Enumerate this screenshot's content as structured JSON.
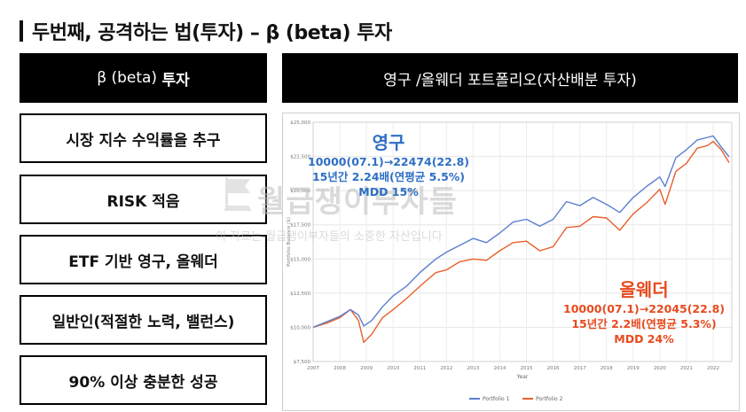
{
  "page": {
    "title": "두번째, 공격하는 법(투자) – β (beta) 투자"
  },
  "left_panel": {
    "header_prefix": "β (beta)",
    "header_bold": "투자",
    "items": [
      "시장 지수 수익률을 추구",
      "RISK 적음",
      "ETF 기반 영구, 올웨더",
      "일반인(적절한 노력, 밸런스)",
      "90% 이상 충분한 성공"
    ]
  },
  "right_panel": {
    "header": "영구 /올웨더 포트폴리오(자산배분 투자)"
  },
  "watermark": {
    "main": "월급쟁이부자들",
    "sub": "이 자료는 월급쟁이부자들의 소중한 자산입니다"
  },
  "annotations": {
    "permanent": {
      "name": "영구",
      "line1": "10000(07.1)→22474(22.8)",
      "line2": "15년간 2.24배(연평균 5.5%)",
      "line3": "MDD 15%"
    },
    "allweather": {
      "name": "올웨더",
      "line1": "10000(07.1)→22045(22.8)",
      "line2": "15년간 2.2배(연평균 5.3%)",
      "line3": "MDD 24%"
    }
  },
  "chart_data": {
    "type": "line",
    "xlabel": "Year",
    "ylabel": "Portfolio Balance ($)",
    "xlim": [
      2007,
      2022.7
    ],
    "ylim": [
      7500,
      25000
    ],
    "y_ticks": [
      "$7,500",
      "$10,000",
      "$12,500",
      "$15,000",
      "$17,500",
      "$20,000",
      "$22,500",
      "$25,000"
    ],
    "y_tick_values": [
      7500,
      10000,
      12500,
      15000,
      17500,
      20000,
      22500,
      25000
    ],
    "x_ticks": [
      "2007",
      "2008",
      "2009",
      "2010",
      "2011",
      "2012",
      "2013",
      "2014",
      "2015",
      "2016",
      "2017",
      "2018",
      "2019",
      "2020",
      "2021",
      "2022"
    ],
    "legend_position": "bottom",
    "grid": true,
    "series": [
      {
        "name": "Portfolio 1",
        "color": "#5b7fcf",
        "x": [
          2007.0,
          2007.5,
          2008.0,
          2008.4,
          2008.7,
          2008.9,
          2009.2,
          2009.6,
          2010.0,
          2010.5,
          2011.0,
          2011.6,
          2012.0,
          2012.5,
          2013.0,
          2013.5,
          2014.0,
          2014.5,
          2015.0,
          2015.5,
          2016.0,
          2016.5,
          2017.0,
          2017.5,
          2018.0,
          2018.5,
          2019.0,
          2019.5,
          2020.0,
          2020.2,
          2020.6,
          2021.0,
          2021.4,
          2021.8,
          2022.0,
          2022.3,
          2022.6
        ],
        "y": [
          10000,
          10400,
          10800,
          11300,
          10900,
          10100,
          10500,
          11500,
          12300,
          13000,
          14000,
          15000,
          15500,
          16000,
          16500,
          16200,
          16900,
          17700,
          17900,
          17400,
          17900,
          19200,
          18900,
          19500,
          19000,
          18400,
          19500,
          20300,
          21000,
          20300,
          22400,
          23000,
          23700,
          23900,
          24000,
          23200,
          22474
        ]
      },
      {
        "name": "Portfolio 2",
        "color": "#e8602c",
        "x": [
          2007.0,
          2007.5,
          2008.0,
          2008.4,
          2008.7,
          2008.9,
          2009.2,
          2009.6,
          2010.0,
          2010.5,
          2011.0,
          2011.6,
          2012.0,
          2012.5,
          2013.0,
          2013.5,
          2014.0,
          2014.5,
          2015.0,
          2015.5,
          2016.0,
          2016.5,
          2017.0,
          2017.5,
          2018.0,
          2018.5,
          2019.0,
          2019.5,
          2020.0,
          2020.2,
          2020.6,
          2021.0,
          2021.4,
          2021.8,
          2022.0,
          2022.3,
          2022.6
        ],
        "y": [
          10000,
          10300,
          10700,
          11300,
          10500,
          8900,
          9500,
          10700,
          11300,
          12100,
          13000,
          14000,
          14200,
          14800,
          15000,
          14900,
          15600,
          16200,
          16300,
          15600,
          15900,
          17300,
          17400,
          18100,
          18000,
          17100,
          18300,
          19100,
          20100,
          19000,
          21400,
          22000,
          23100,
          23300,
          23600,
          23000,
          22045
        ]
      }
    ]
  }
}
